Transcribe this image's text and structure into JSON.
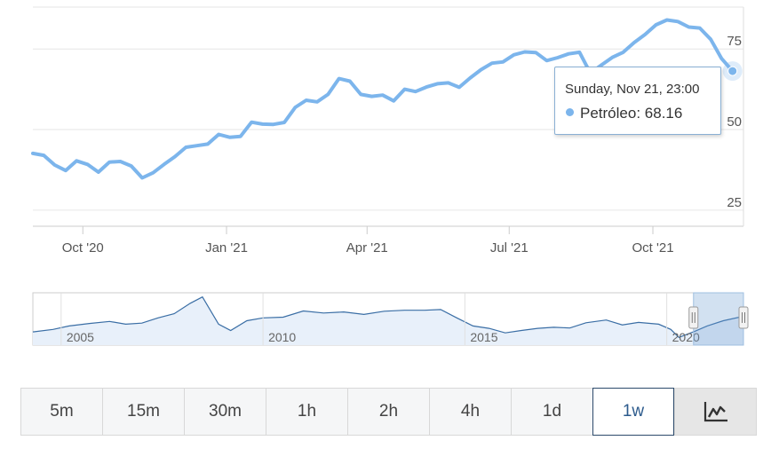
{
  "chart_data": [
    {
      "type": "line",
      "title": "",
      "xlabel": "",
      "ylabel": "",
      "ylim": [
        20,
        88
      ],
      "y_ticks": [
        25,
        50,
        75
      ],
      "x_tick_labels": [
        "Oct '20",
        "Jan '21",
        "Apr '21",
        "Jul '21",
        "Oct '21"
      ],
      "x_tick_dates": [
        "2020-10-01",
        "2021-01-01",
        "2021-04-01",
        "2021-07-01",
        "2021-10-01"
      ],
      "x_range": [
        "2020-08-30",
        "2021-11-28"
      ],
      "grid": true,
      "color": "#7cb5ec",
      "series": [
        {
          "name": "Petróleo",
          "x": [
            "2020-08-30",
            "2020-09-06",
            "2020-09-13",
            "2020-09-20",
            "2020-09-27",
            "2020-10-04",
            "2020-10-11",
            "2020-10-18",
            "2020-10-25",
            "2020-11-01",
            "2020-11-08",
            "2020-11-15",
            "2020-11-22",
            "2020-11-29",
            "2020-12-06",
            "2020-12-13",
            "2020-12-20",
            "2020-12-27",
            "2021-01-03",
            "2021-01-10",
            "2021-01-17",
            "2021-01-24",
            "2021-01-31",
            "2021-02-07",
            "2021-02-14",
            "2021-02-21",
            "2021-02-28",
            "2021-03-07",
            "2021-03-14",
            "2021-03-21",
            "2021-03-28",
            "2021-04-04",
            "2021-04-11",
            "2021-04-18",
            "2021-04-25",
            "2021-05-02",
            "2021-05-09",
            "2021-05-16",
            "2021-05-23",
            "2021-05-30",
            "2021-06-06",
            "2021-06-13",
            "2021-06-20",
            "2021-06-27",
            "2021-07-04",
            "2021-07-11",
            "2021-07-18",
            "2021-07-25",
            "2021-08-01",
            "2021-08-08",
            "2021-08-15",
            "2021-08-22",
            "2021-08-29",
            "2021-09-05",
            "2021-09-12",
            "2021-09-19",
            "2021-09-26",
            "2021-10-03",
            "2021-10-10",
            "2021-10-17",
            "2021-10-24",
            "2021-10-31",
            "2021-11-07",
            "2021-11-14",
            "2021-11-21"
          ],
          "values": [
            42.6,
            42.0,
            39.0,
            37.3,
            40.3,
            39.2,
            36.8,
            39.9,
            40.1,
            38.7,
            35.0,
            36.6,
            39.2,
            41.6,
            44.5,
            45.0,
            45.5,
            48.5,
            47.6,
            47.9,
            52.3,
            51.7,
            51.6,
            52.2,
            56.9,
            59.1,
            58.6,
            60.9,
            65.8,
            65.0,
            60.9,
            60.3,
            60.7,
            58.9,
            62.5,
            61.8,
            63.2,
            64.2,
            64.5,
            63.1,
            66.0,
            68.6,
            70.6,
            71.0,
            73.2,
            74.1,
            73.9,
            71.4,
            72.3,
            73.5,
            74.0,
            67.5,
            70.0,
            72.4,
            74.0,
            77.0,
            79.5,
            82.5,
            84.0,
            83.5,
            81.8,
            81.5,
            78.0,
            72.0,
            68.16
          ]
        }
      ],
      "tooltip": {
        "date_text": "Sunday, Nov 21, 23:00",
        "series_label": "Petróleo:",
        "value_text": "68.16"
      }
    },
    {
      "type": "area",
      "role": "navigator",
      "x_tick_labels": [
        "2005",
        "2010",
        "2015",
        "2020"
      ],
      "x_tick_years": [
        2005,
        2010,
        2015,
        2020
      ],
      "x_range": [
        2004.3,
        2021.9
      ],
      "ylim": [
        0,
        150
      ],
      "selected_range": [
        "2020-08-30",
        "2021-11-28"
      ],
      "series": [
        {
          "x": [
            2004.3,
            2004.8,
            2005.2,
            2005.7,
            2006.2,
            2006.6,
            2007.0,
            2007.4,
            2007.8,
            2008.2,
            2008.5,
            2008.9,
            2009.2,
            2009.6,
            2010.0,
            2010.5,
            2011.0,
            2011.5,
            2012.0,
            2012.5,
            2013.0,
            2013.5,
            2014.0,
            2014.4,
            2014.8,
            2015.2,
            2015.6,
            2016.0,
            2016.4,
            2016.8,
            2017.2,
            2017.6,
            2018.0,
            2018.5,
            2018.9,
            2019.3,
            2019.8,
            2020.1,
            2020.3,
            2020.7,
            2021.0,
            2021.4,
            2021.8,
            2021.9
          ],
          "values": [
            38,
            45,
            55,
            62,
            68,
            60,
            63,
            78,
            90,
            120,
            138,
            60,
            42,
            70,
            78,
            80,
            98,
            92,
            95,
            88,
            97,
            100,
            100,
            102,
            78,
            55,
            48,
            35,
            42,
            48,
            51,
            49,
            64,
            72,
            58,
            65,
            60,
            45,
            22,
            40,
            55,
            70,
            80,
            78
          ]
        }
      ],
      "handle_label": "||"
    }
  ],
  "timeframes": [
    {
      "label": "5m"
    },
    {
      "label": "15m"
    },
    {
      "label": "30m"
    },
    {
      "label": "1h"
    },
    {
      "label": "2h"
    },
    {
      "label": "4h"
    },
    {
      "label": "1d"
    },
    {
      "label": "1w"
    }
  ],
  "active_timeframe": "1w",
  "chart_type_icon": "line-chart-icon"
}
